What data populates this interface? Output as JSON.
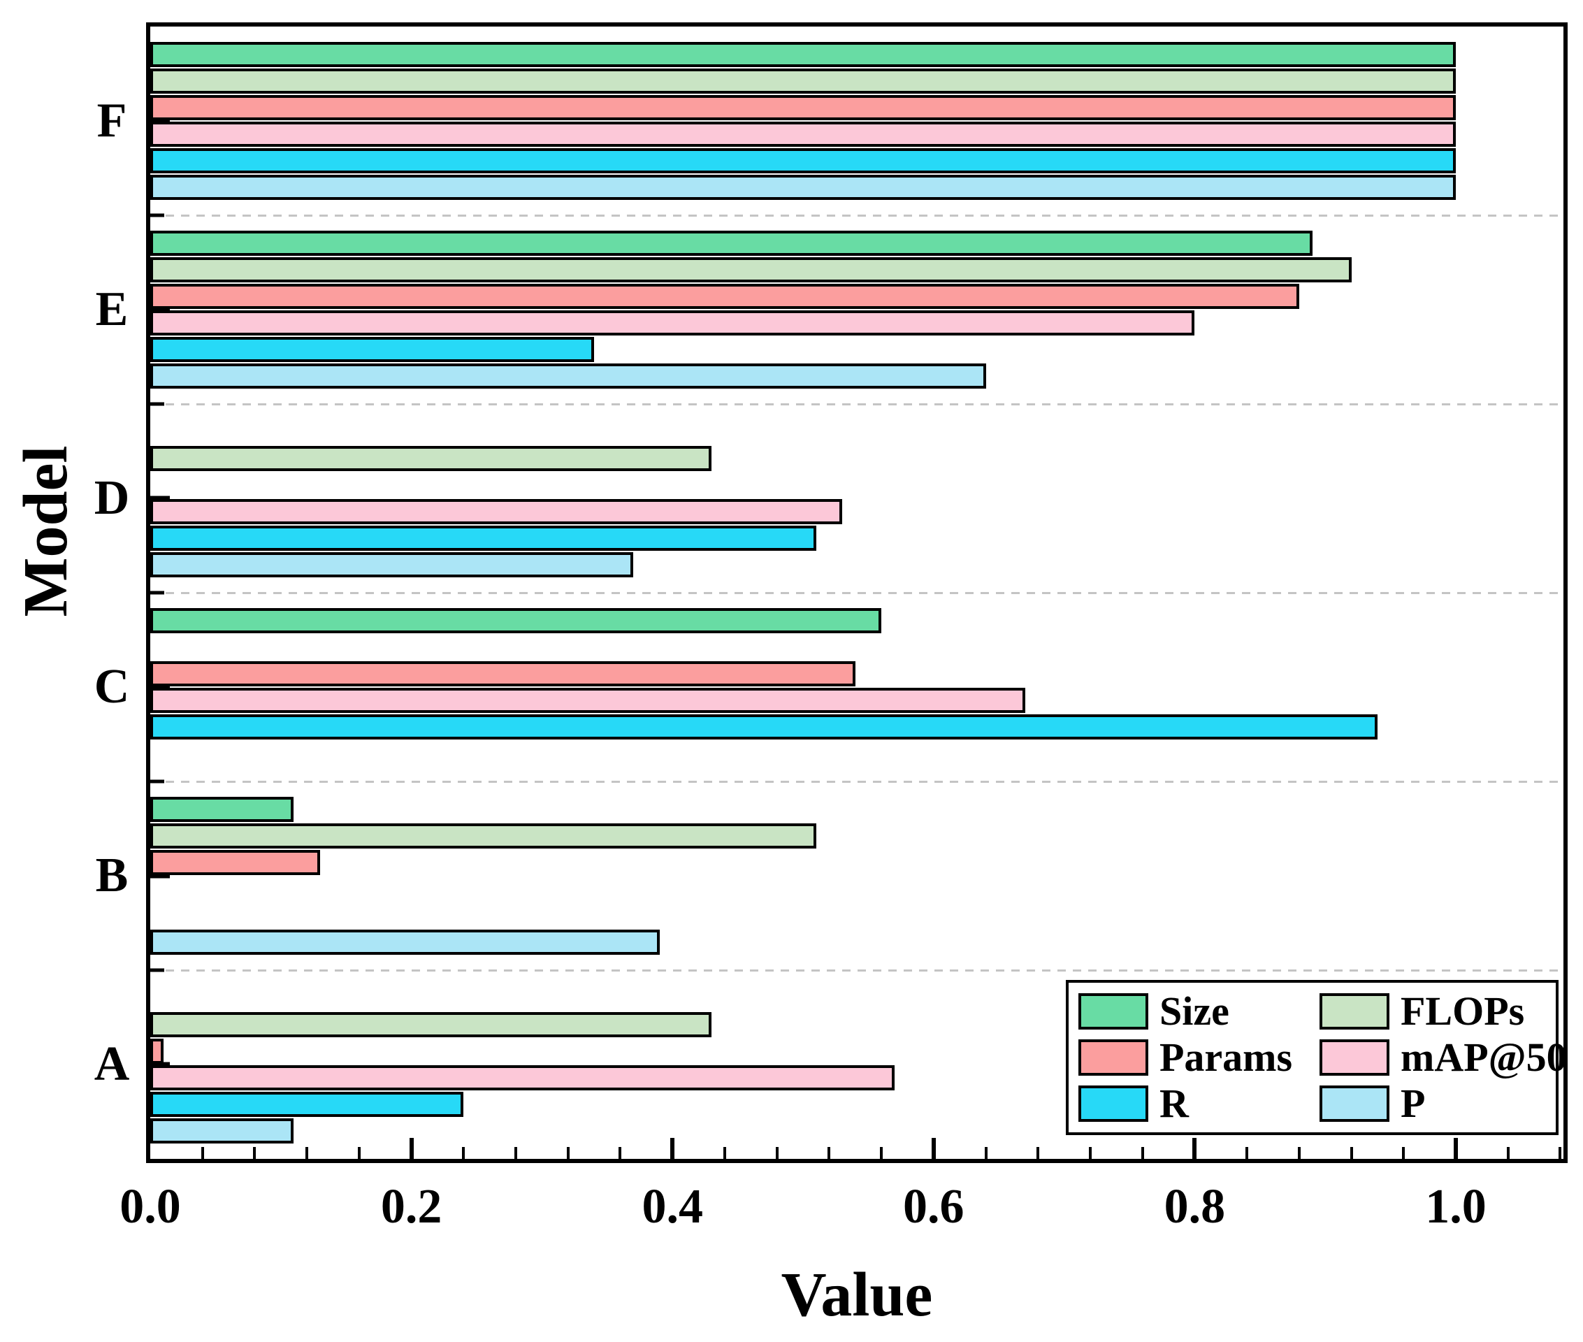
{
  "axes": {
    "x_label": "Value",
    "y_label": "Model"
  },
  "chart_data": {
    "type": "bar",
    "orientation": "horizontal",
    "title": "",
    "xlabel": "Value",
    "ylabel": "Model",
    "xlim": [
      0,
      1.082
    ],
    "grid": "dashed horizontal lines at category boundaries",
    "legend_position": "lower right, 2 columns",
    "categories_top_to_bottom": [
      "F",
      "E",
      "D",
      "C",
      "B",
      "A"
    ],
    "x_ticks": [
      {
        "label": "0.0",
        "value": 0.0
      },
      {
        "label": "0.2",
        "value": 0.2
      },
      {
        "label": "0.4",
        "value": 0.4
      },
      {
        "label": "0.6",
        "value": 0.6
      },
      {
        "label": "0.8",
        "value": 0.8
      },
      {
        "label": "1.0",
        "value": 1.0
      }
    ],
    "x_minor_tick_step": 0.04,
    "series": [
      {
        "name": "Size",
        "color": "#68DCA4",
        "values": [
          1.0,
          0.89,
          0.0,
          0.56,
          0.11,
          0.0
        ]
      },
      {
        "name": "FLOPs",
        "color": "#C9E4C4",
        "values": [
          1.0,
          0.92,
          0.43,
          0.0,
          0.51,
          0.43
        ]
      },
      {
        "name": "Params",
        "color": "#FB9E9E",
        "values": [
          1.0,
          0.88,
          0.0,
          0.54,
          0.13,
          0.01
        ]
      },
      {
        "name": "mAP@50",
        "color": "#FCC8D8",
        "values": [
          1.0,
          0.8,
          0.53,
          0.67,
          0.0,
          0.57
        ]
      },
      {
        "name": "R",
        "color": "#27D9F7",
        "values": [
          1.0,
          0.34,
          0.51,
          0.94,
          0.0,
          0.24
        ]
      },
      {
        "name": "P",
        "color": "#ABE5F6",
        "values": [
          1.0,
          0.64,
          0.37,
          0.0,
          0.39,
          0.11
        ]
      }
    ]
  },
  "legend": {
    "entries": [
      {
        "label": "Size",
        "color": "#68DCA4"
      },
      {
        "label": "FLOPs",
        "color": "#C9E4C4"
      },
      {
        "label": "Params",
        "color": "#FB9E9E"
      },
      {
        "label": "mAP@50",
        "color": "#FCC8D8"
      },
      {
        "label": "R",
        "color": "#27D9F7"
      },
      {
        "label": "P",
        "color": "#ABE5F6"
      }
    ]
  },
  "style": {
    "bar_edge_color": "#000000",
    "frame_color": "#000000",
    "gridline_color": "#C4C4C4",
    "background": "#FFFFFF"
  }
}
